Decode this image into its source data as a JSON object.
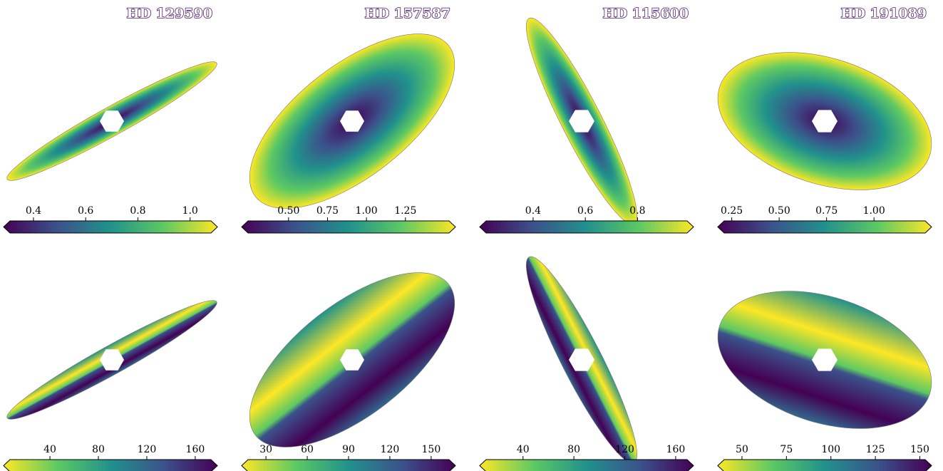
{
  "chart_data": [
    {
      "type": "image",
      "title": "HD 129590",
      "colormap": "viridis",
      "xlim": [
        0.31,
        1.08
      ],
      "xticks": [
        0.4,
        0.6,
        0.8,
        {
          "value": 1.0,
          "label": "1.0"
        }
      ]
    },
    {
      "type": "image",
      "title": "HD 157587",
      "colormap": "viridis",
      "xlim": [
        0.24,
        1.53
      ],
      "xticks": [
        {
          "value": 0.5,
          "label": "0.50"
        },
        0.75,
        {
          "value": 1.0,
          "label": "1.00"
        },
        1.25
      ]
    },
    {
      "type": "image",
      "title": "HD 115600",
      "colormap": "viridis",
      "xlim": [
        0.22,
        0.99
      ],
      "xticks": [
        0.4,
        0.6,
        0.8
      ]
    },
    {
      "type": "image",
      "title": "HD 191089",
      "colormap": "viridis",
      "xlim": [
        0.21,
        1.27
      ],
      "xticks": [
        0.25,
        {
          "value": 0.5,
          "label": "0.50"
        },
        0.75,
        {
          "value": 1.0,
          "label": "1.00"
        }
      ]
    },
    {
      "type": "image",
      "colormap": "viridis_r",
      "xlim": [
        7,
        173
      ],
      "xticks": [
        40,
        80,
        120,
        160
      ]
    },
    {
      "type": "image",
      "colormap": "viridis_r",
      "xlim": [
        17,
        163
      ],
      "xticks": [
        30,
        60,
        90,
        120,
        150
      ]
    },
    {
      "type": "image",
      "colormap": "viridis_r",
      "xlim": [
        11,
        169
      ],
      "xticks": [
        40,
        80,
        120,
        160
      ]
    },
    {
      "type": "image",
      "colormap": "viridis_r",
      "xlim": [
        40,
        153
      ],
      "xticks": [
        50,
        75,
        100,
        125,
        150
      ]
    }
  ]
}
